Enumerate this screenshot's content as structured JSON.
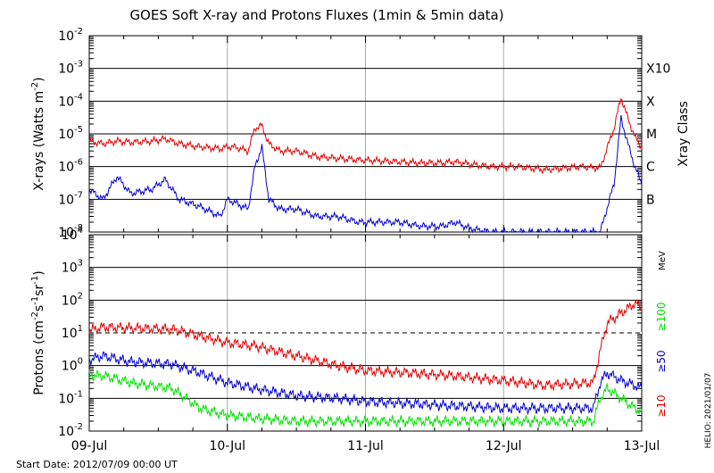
{
  "chart_data": [
    {
      "type": "line",
      "title": "GOES Soft X-ray and Protons Fluxes   (1min & 5min data)",
      "ylabel_base": "X-rays (Watts m",
      "ylabel_sup": "-2",
      "ylabel_close": ")",
      "yscale": "log",
      "ylim": [
        1e-08,
        0.01
      ],
      "y_ticks": [
        {
          "exp": "-8"
        },
        {
          "exp": "-7"
        },
        {
          "exp": "-6"
        },
        {
          "exp": "-5"
        },
        {
          "exp": "-4"
        },
        {
          "exp": "-3"
        },
        {
          "exp": "-2"
        }
      ],
      "right_axis_label": "Xray Class",
      "classes": [
        {
          "label": "B",
          "value": 1e-07
        },
        {
          "label": "C",
          "value": 1e-06
        },
        {
          "label": "M",
          "value": 1e-05
        },
        {
          "label": "X",
          "value": 0.0001
        },
        {
          "label": "X10",
          "value": 0.001
        }
      ],
      "series": [
        {
          "color": "#e00000",
          "x": [
            0,
            0.1,
            0.2,
            0.3,
            0.45,
            0.55,
            0.65,
            0.8,
            0.95,
            1.0,
            1.05,
            1.15,
            1.2,
            1.25,
            1.3,
            1.38,
            1.5,
            1.65,
            1.8,
            1.95,
            2.1,
            2.25,
            2.4,
            2.55,
            2.65,
            2.75,
            2.9,
            3.1,
            3.3,
            3.45,
            3.55,
            3.7,
            3.8,
            3.85,
            3.9,
            3.95,
            4.0
          ],
          "y": [
            6e-06,
            5e-06,
            6e-06,
            5.5e-06,
            6e-06,
            7e-06,
            5e-06,
            4e-06,
            3.5e-06,
            4e-06,
            4e-06,
            3e-06,
            1.5e-05,
            1.8e-05,
            5e-06,
            3e-06,
            3e-06,
            2e-06,
            1.8e-06,
            1.6e-06,
            1.5e-06,
            1.4e-06,
            1.3e-06,
            1.3e-06,
            1.4e-06,
            1.2e-06,
            1e-06,
            1e-06,
            8e-07,
            9e-07,
            1e-06,
            9e-07,
            1.5e-05,
            0.00013,
            3e-05,
            8e-06,
            4e-06
          ]
        },
        {
          "color": "#0000d0",
          "x": [
            0,
            0.1,
            0.2,
            0.3,
            0.45,
            0.55,
            0.65,
            0.8,
            0.95,
            1.0,
            1.05,
            1.15,
            1.2,
            1.25,
            1.3,
            1.38,
            1.5,
            1.65,
            1.8,
            1.95,
            2.1,
            2.25,
            2.4,
            2.55,
            2.65,
            2.75,
            2.9,
            3.1,
            3.3,
            3.45,
            3.55,
            3.7,
            3.8,
            3.85,
            3.9,
            3.95,
            4.0
          ],
          "y": [
            2e-07,
            1e-07,
            5e-07,
            1.5e-07,
            2e-07,
            4e-07,
            1e-07,
            6e-08,
            3e-08,
            1e-07,
            8e-08,
            5e-08,
            1e-06,
            4e-06,
            1e-07,
            5e-08,
            5e-08,
            3e-08,
            3e-08,
            2e-08,
            2e-08,
            2e-08,
            1.5e-08,
            1.5e-08,
            2e-08,
            1.3e-08,
            1e-08,
            1e-08,
            1e-08,
            1e-08,
            1e-08,
            1e-08,
            3e-07,
            3e-05,
            5e-06,
            1e-06,
            3e-07
          ]
        }
      ]
    },
    {
      "type": "line",
      "ylabel_base": "Protons (cm",
      "ylabel_sup1": "-2",
      "ylabel_mid": "s",
      "ylabel_sup2": "-1",
      "ylabel_mid2": "sr",
      "ylabel_sup3": "-1",
      "ylabel_close": ")",
      "yscale": "log",
      "ylim": [
        0.01,
        10000
      ],
      "y_ticks": [
        {
          "label": "10",
          "exp": "-2"
        },
        {
          "label": "10",
          "exp": "-1"
        },
        {
          "label": "10",
          "exp": "0"
        },
        {
          "label": "10",
          "exp": "1"
        },
        {
          "label": "10",
          "exp": "2"
        },
        {
          "label": "10",
          "exp": "3"
        },
        {
          "label": "10",
          "exp": "4"
        }
      ],
      "dashed_threshold": 10,
      "unit_label": "MeV",
      "legend": [
        {
          "label": "≥100",
          "color": "#00e000"
        },
        {
          "label": "≥50",
          "color": "#0000d0"
        },
        {
          "label": "≥10",
          "color": "#e00000"
        }
      ],
      "series": [
        {
          "color": "#e00000",
          "x": [
            0,
            0.1,
            0.3,
            0.6,
            0.8,
            1.0,
            1.2,
            1.5,
            1.8,
            2.0,
            2.3,
            2.6,
            3.0,
            3.3,
            3.65,
            3.7,
            3.75,
            3.85,
            3.95,
            4.0
          ],
          "y": [
            12,
            15,
            14,
            13,
            8,
            5,
            4,
            2,
            1,
            0.7,
            0.6,
            0.5,
            0.35,
            0.25,
            0.3,
            3,
            20,
            40,
            80,
            60
          ]
        },
        {
          "color": "#0000d0",
          "x": [
            0,
            0.1,
            0.3,
            0.6,
            0.8,
            1.0,
            1.2,
            1.5,
            1.8,
            2.0,
            2.3,
            2.6,
            3.0,
            3.3,
            3.65,
            3.7,
            3.75,
            3.85,
            3.95,
            4.0
          ],
          "y": [
            1.5,
            2,
            1.3,
            1.1,
            0.6,
            0.3,
            0.2,
            0.12,
            0.1,
            0.08,
            0.07,
            0.06,
            0.05,
            0.05,
            0.05,
            0.3,
            0.6,
            0.35,
            0.25,
            0.2
          ]
        },
        {
          "color": "#00e000",
          "x": [
            0,
            0.1,
            0.3,
            0.6,
            0.8,
            1.0,
            1.2,
            1.5,
            1.8,
            2.0,
            2.3,
            2.6,
            3.0,
            3.3,
            3.65,
            3.7,
            3.75,
            3.85,
            3.95,
            4.0
          ],
          "y": [
            0.5,
            0.5,
            0.3,
            0.2,
            0.05,
            0.03,
            0.025,
            0.02,
            0.02,
            0.02,
            0.02,
            0.02,
            0.02,
            0.02,
            0.02,
            0.1,
            0.2,
            0.1,
            0.05,
            0.04
          ]
        }
      ]
    }
  ],
  "x_axis": {
    "ticks": [
      "09-Jul",
      "10-Jul",
      "11-Jul",
      "12-Jul",
      "13-Jul"
    ],
    "xlim": [
      0,
      4
    ]
  },
  "footer": {
    "start_date": "Start Date: 2012/07/09 00:00 UT",
    "credit": "HELIO: 2021/01/07"
  }
}
